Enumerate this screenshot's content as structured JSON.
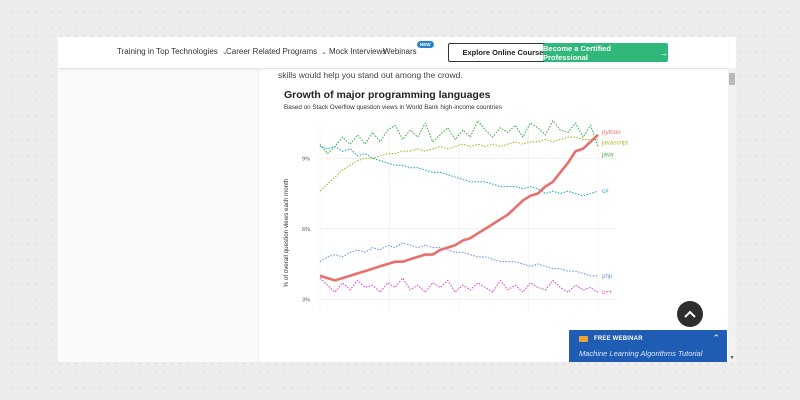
{
  "navbar": {
    "items": [
      {
        "label": "Training in Top Technologies",
        "dropdown": true
      },
      {
        "label": "Career Related Programs",
        "dropdown": true
      },
      {
        "label": "Mock Interviews",
        "dropdown": false
      },
      {
        "label": "Webinars",
        "dropdown": false
      }
    ],
    "new_badge": "NEW",
    "explore_label": "Explore Online Courses",
    "cert_label": "Become a Certified Professional",
    "cert_color": "#2fb87a"
  },
  "article": {
    "intro": "skills would help you stand out among the crowd."
  },
  "chart_data": {
    "type": "line",
    "title": "Growth of major programming languages",
    "subtitle": "Based on Stack Overflow question views in World Bank high-income countries",
    "ylabel": "% of overall question views each month",
    "xlabel": "",
    "yticks": [
      "9%",
      "6%",
      "3%"
    ],
    "ylim": [
      2.5,
      10.5
    ],
    "grid": true,
    "series": [
      {
        "name": "python",
        "color": "#e8706c",
        "width": 2.6,
        "values": [
          4.0,
          3.9,
          3.8,
          3.9,
          4.0,
          4.1,
          4.2,
          4.3,
          4.4,
          4.5,
          4.6,
          4.6,
          4.7,
          4.8,
          4.9,
          4.9,
          5.1,
          5.2,
          5.3,
          5.5,
          5.6,
          5.8,
          6.0,
          6.2,
          6.4,
          6.6,
          6.9,
          7.2,
          7.4,
          7.5,
          7.8,
          8.0,
          8.4,
          8.8,
          9.3,
          9.4,
          9.7,
          10.0
        ]
      },
      {
        "name": "javascript",
        "color": "#b7b53a",
        "width": 1.1,
        "values": [
          7.6,
          7.9,
          8.2,
          8.5,
          8.7,
          8.9,
          9.0,
          9.0,
          9.1,
          9.2,
          9.2,
          9.3,
          9.3,
          9.4,
          9.3,
          9.4,
          9.5,
          9.4,
          9.5,
          9.6,
          9.5,
          9.6,
          9.5,
          9.6,
          9.5,
          9.6,
          9.7,
          9.6,
          9.7,
          9.7,
          9.8,
          9.7,
          9.8,
          9.9,
          9.9,
          9.8,
          9.8,
          9.8
        ]
      },
      {
        "name": "java",
        "color": "#45b545",
        "width": 1.1,
        "values": [
          9.6,
          9.2,
          9.5,
          9.9,
          9.6,
          10.0,
          9.6,
          10.1,
          9.7,
          10.2,
          10.4,
          9.8,
          10.2,
          9.9,
          10.5,
          9.7,
          10.0,
          10.3,
          9.8,
          10.2,
          9.9,
          10.6,
          10.2,
          9.9,
          10.3,
          10.1,
          10.4,
          9.9,
          10.5,
          10.3,
          10.0,
          10.6,
          10.2,
          10.1,
          10.5,
          9.9,
          10.4,
          9.5
        ]
      },
      {
        "name": "c#",
        "color": "#2eaac4",
        "width": 1.1,
        "values": [
          9.5,
          9.4,
          9.5,
          9.3,
          9.4,
          9.1,
          9.2,
          9.0,
          8.9,
          8.8,
          8.7,
          8.7,
          8.6,
          8.6,
          8.5,
          8.4,
          8.4,
          8.3,
          8.2,
          8.1,
          8.0,
          8.0,
          8.0,
          7.9,
          7.8,
          7.8,
          7.8,
          7.7,
          7.8,
          7.7,
          7.5,
          7.6,
          7.5,
          7.6,
          7.5,
          7.4,
          7.5,
          7.6
        ]
      },
      {
        "name": "php",
        "color": "#6f9ae3",
        "width": 1.1,
        "values": [
          4.6,
          4.8,
          4.9,
          4.8,
          5.0,
          5.1,
          5.0,
          5.2,
          5.1,
          5.3,
          5.2,
          5.4,
          5.3,
          5.2,
          5.3,
          5.2,
          5.2,
          5.1,
          5.0,
          5.0,
          4.9,
          4.8,
          4.8,
          4.7,
          4.6,
          4.6,
          4.6,
          4.5,
          4.4,
          4.5,
          4.4,
          4.3,
          4.3,
          4.2,
          4.2,
          4.1,
          4.0,
          4.0
        ]
      },
      {
        "name": "c++",
        "color": "#de4fd6",
        "width": 1.1,
        "values": [
          3.9,
          3.6,
          3.3,
          3.7,
          3.4,
          3.8,
          3.5,
          3.6,
          3.3,
          3.7,
          3.5,
          3.9,
          3.4,
          3.6,
          3.3,
          3.7,
          3.5,
          3.8,
          3.3,
          3.6,
          3.4,
          3.7,
          3.5,
          3.3,
          3.8,
          3.4,
          3.6,
          3.3,
          3.7,
          3.5,
          3.4,
          3.8,
          3.5,
          3.3,
          3.6,
          3.4,
          3.5,
          3.3
        ]
      }
    ]
  },
  "webinar": {
    "tag": "FREE WEBINAR",
    "title": "Machine Learning Algorithms Tutorial"
  }
}
